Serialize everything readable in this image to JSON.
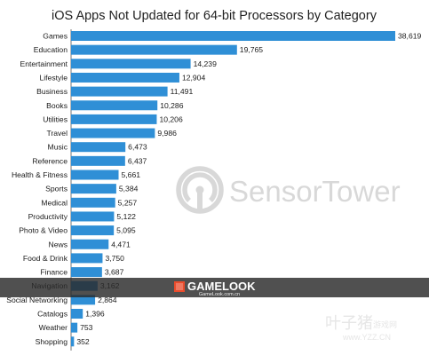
{
  "chart_data": {
    "type": "bar",
    "orientation": "horizontal",
    "title": "iOS Apps Not Updated for 64-bit Processors by Category",
    "xlabel": "",
    "ylabel": "",
    "grid": false,
    "legend": "none",
    "bar_color": "#2f8fd6",
    "categories": [
      "Games",
      "Education",
      "Entertainment",
      "Lifestyle",
      "Business",
      "Books",
      "Utilities",
      "Travel",
      "Music",
      "Reference",
      "Health & Fitness",
      "Sports",
      "Medical",
      "Productivity",
      "Photo & Video",
      "News",
      "Food & Drink",
      "Finance",
      "Navigation",
      "Social Networking",
      "Catalogs",
      "Weather",
      "Shopping"
    ],
    "values": [
      38619,
      19765,
      14239,
      12904,
      11491,
      10286,
      10206,
      9986,
      6473,
      6437,
      5661,
      5384,
      5257,
      5122,
      5095,
      4471,
      3750,
      3687,
      3162,
      2864,
      1396,
      753,
      352
    ],
    "value_labels": [
      "38,619",
      "19,765",
      "14,239",
      "12,904",
      "11,491",
      "10,286",
      "10,206",
      "9,986",
      "6,473",
      "6,437",
      "5,661",
      "5,384",
      "5,257",
      "5,122",
      "5,095",
      "4,471",
      "3,750",
      "3,687",
      "3,162",
      "2,864",
      "1,396",
      "753",
      "352"
    ],
    "xlim": [
      0,
      38619
    ]
  },
  "watermarks": {
    "sensortower": {
      "text": "SensorTower",
      "color": "#d8d8d8"
    },
    "gamelook": {
      "text": "GAMELOOK",
      "sub": "GameLook.com.cn"
    },
    "yzz": {
      "text": "叶子猪",
      "sub_cn": "游戏网",
      "sub": "www.YZZ.CN"
    }
  }
}
